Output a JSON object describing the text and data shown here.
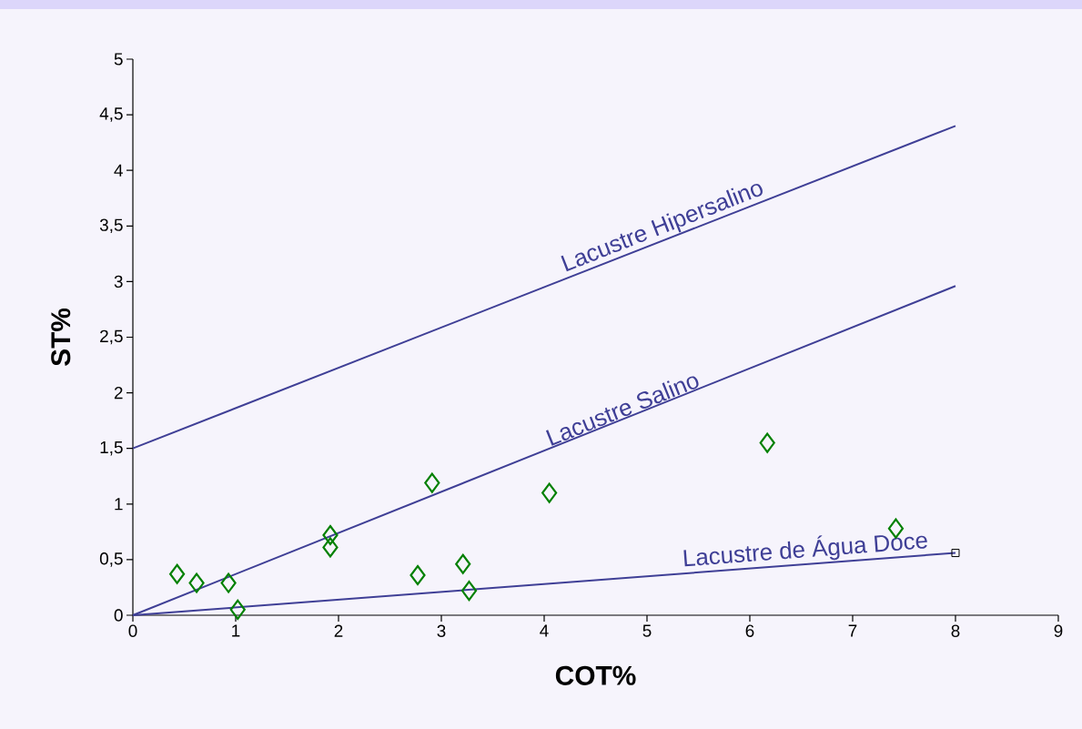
{
  "chart_data": {
    "type": "scatter",
    "xlabel": "COT%",
    "ylabel": "ST%",
    "xlim": [
      0,
      9
    ],
    "ylim": [
      0,
      5
    ],
    "xticks": [
      0,
      1,
      2,
      3,
      4,
      5,
      6,
      7,
      8,
      9
    ],
    "yticks": [
      0,
      {
        "value": 0.5,
        "label": "0,5"
      },
      1,
      {
        "value": 1.5,
        "label": "1,5"
      },
      2,
      {
        "value": 2.5,
        "label": "2,5"
      },
      3,
      {
        "value": 3.5,
        "label": "3,5"
      },
      4,
      {
        "value": 4.5,
        "label": "4,5"
      },
      5
    ],
    "grid": false,
    "series": [
      {
        "marker": "diamond",
        "color": "#008000",
        "x": [
          0.43,
          0.62,
          0.93,
          1.02,
          1.92,
          1.92,
          2.77,
          2.91,
          3.21,
          3.27,
          4.05,
          6.17,
          7.42
        ],
        "values": [
          0.37,
          0.29,
          0.29,
          0.05,
          0.72,
          0.61,
          0.36,
          1.19,
          0.46,
          0.22,
          1.1,
          1.55,
          0.78
        ]
      },
      {
        "type": "line",
        "marker": "none",
        "color": "#3f3f96",
        "x": [
          0,
          8
        ],
        "values": [
          1.5,
          4.4
        ]
      },
      {
        "type": "line",
        "marker": "none",
        "color": "#3f3f96",
        "x": [
          0,
          8
        ],
        "values": [
          0,
          2.96
        ]
      },
      {
        "type": "line",
        "marker": "none",
        "color": "#3f3f96",
        "x": [
          0,
          8
        ],
        "values": [
          0,
          0.56
        ]
      },
      {
        "type": "scatter",
        "marker": "square",
        "color": "#000000",
        "x": [
          8
        ],
        "values": [
          0.56
        ]
      }
    ],
    "annotations": [
      {
        "text": "Lacustre Hipersalino",
        "x": 5.2,
        "y": 3.38
      },
      {
        "text": "Lacustre Salino",
        "x": 4.8,
        "y": 1.77
      },
      {
        "text": "Lacustre de Água Doce",
        "x": 6.55,
        "y": 0.46
      }
    ]
  }
}
